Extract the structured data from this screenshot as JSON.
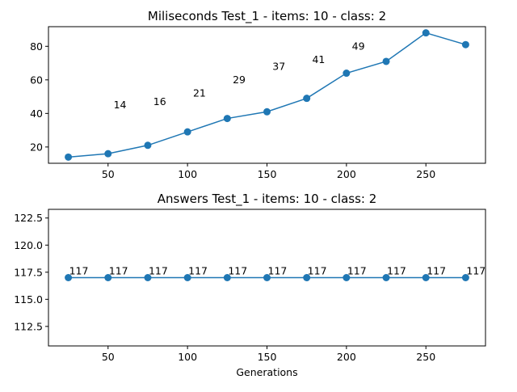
{
  "colors": {
    "series": "#1f77b4",
    "axes": "#000000",
    "background": "#ffffff"
  },
  "chart_data": [
    {
      "type": "line",
      "title": "Miliseconds Test_1 - items: 10 - class: 2",
      "xlabel": "",
      "ylabel": "",
      "xlim": [
        12.5,
        287.5
      ],
      "ylim": [
        10.3,
        91.7
      ],
      "xticks": [
        50,
        100,
        150,
        200,
        250
      ],
      "yticks": [
        20,
        40,
        60,
        80
      ],
      "grid": false,
      "show_xtick_labels": true,
      "x": [
        25,
        50,
        75,
        100,
        125,
        150,
        175,
        200,
        225,
        250,
        275
      ],
      "series": [
        {
          "values": [
            14,
            16,
            21,
            29,
            37,
            41,
            49,
            64,
            71,
            88,
            81
          ]
        }
      ],
      "annotations": [
        {
          "text": "14",
          "x": 57.5,
          "y": 43
        },
        {
          "text": "16",
          "x": 82.5,
          "y": 45
        },
        {
          "text": "21",
          "x": 107.5,
          "y": 50
        },
        {
          "text": "29",
          "x": 132.5,
          "y": 58
        },
        {
          "text": "37",
          "x": 157.5,
          "y": 66
        },
        {
          "text": "41",
          "x": 182.5,
          "y": 70
        },
        {
          "text": "49",
          "x": 207.5,
          "y": 78
        }
      ]
    },
    {
      "type": "line",
      "title": "Answers Test_1 - items: 10 - class: 2",
      "xlabel": "Generations",
      "ylabel": "",
      "xlim": [
        12.5,
        287.5
      ],
      "ylim": [
        110.7,
        123.3
      ],
      "xticks": [
        50,
        100,
        150,
        200,
        250
      ],
      "yticks": [
        112.5,
        115.0,
        117.5,
        120.0,
        122.5
      ],
      "ytick_decimals": 1,
      "grid": false,
      "show_xtick_labels": true,
      "x": [
        25,
        50,
        75,
        100,
        125,
        150,
        175,
        200,
        225,
        250,
        275
      ],
      "series": [
        {
          "values": [
            117,
            117,
            117,
            117,
            117,
            117,
            117,
            117,
            117,
            117,
            117
          ]
        }
      ],
      "annotations": [
        {
          "text": "117",
          "x": 25,
          "y": 117
        },
        {
          "text": "117",
          "x": 50,
          "y": 117
        },
        {
          "text": "117",
          "x": 75,
          "y": 117
        },
        {
          "text": "117",
          "x": 100,
          "y": 117
        },
        {
          "text": "117",
          "x": 125,
          "y": 117
        },
        {
          "text": "117",
          "x": 150,
          "y": 117
        },
        {
          "text": "117",
          "x": 175,
          "y": 117
        },
        {
          "text": "117",
          "x": 200,
          "y": 117
        },
        {
          "text": "117",
          "x": 225,
          "y": 117
        },
        {
          "text": "117",
          "x": 250,
          "y": 117
        },
        {
          "text": "117",
          "x": 275,
          "y": 117
        }
      ]
    }
  ]
}
